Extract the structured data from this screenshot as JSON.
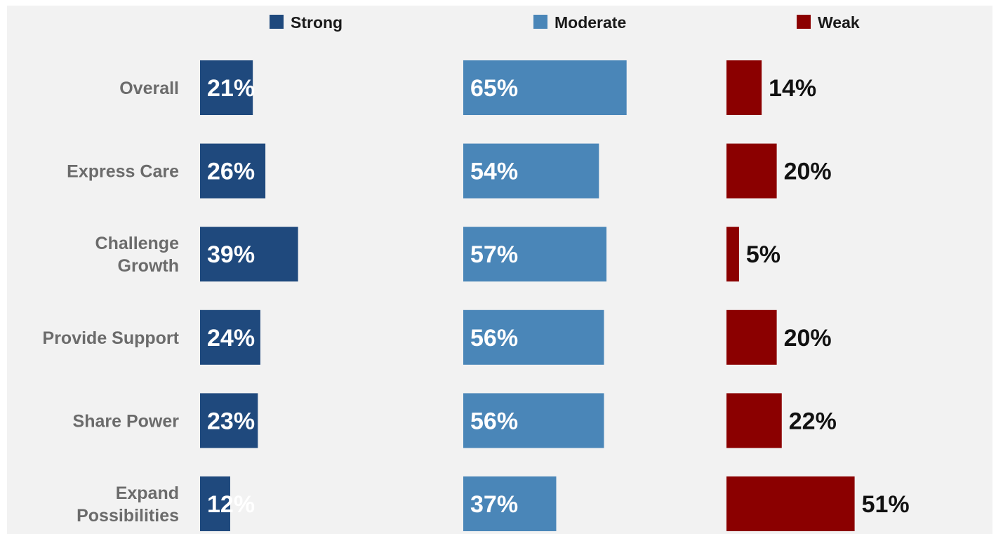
{
  "chart_data": {
    "type": "bar",
    "categories": [
      [
        "Overall"
      ],
      [
        "Express Care"
      ],
      [
        "Challenge",
        "Growth"
      ],
      [
        "Provide Support"
      ],
      [
        "Share Power"
      ],
      [
        "Expand",
        "Possibilities"
      ]
    ],
    "series": [
      {
        "name": "Strong",
        "color": "#1f497d",
        "values": [
          21,
          26,
          39,
          24,
          23,
          12
        ],
        "labels": [
          "21%",
          "26%",
          "39%",
          "24%",
          "23%",
          "12%"
        ],
        "label_position": "inside"
      },
      {
        "name": "Moderate",
        "color": "#4a86b8",
        "values": [
          65,
          54,
          57,
          56,
          56,
          37
        ],
        "labels": [
          "65%",
          "54%",
          "57%",
          "56%",
          "56%",
          "37%"
        ],
        "label_position": "inside"
      },
      {
        "name": "Weak",
        "color": "#8b0000",
        "values": [
          14,
          20,
          5,
          20,
          22,
          51
        ],
        "labels": [
          "14%",
          "20%",
          "5%",
          "20%",
          "22%",
          "51%"
        ],
        "label_position": "outside"
      }
    ],
    "orientation": "horizontal",
    "layout": "panels-side-by-side",
    "legend": "top",
    "grid": false,
    "axis_visible": false
  }
}
